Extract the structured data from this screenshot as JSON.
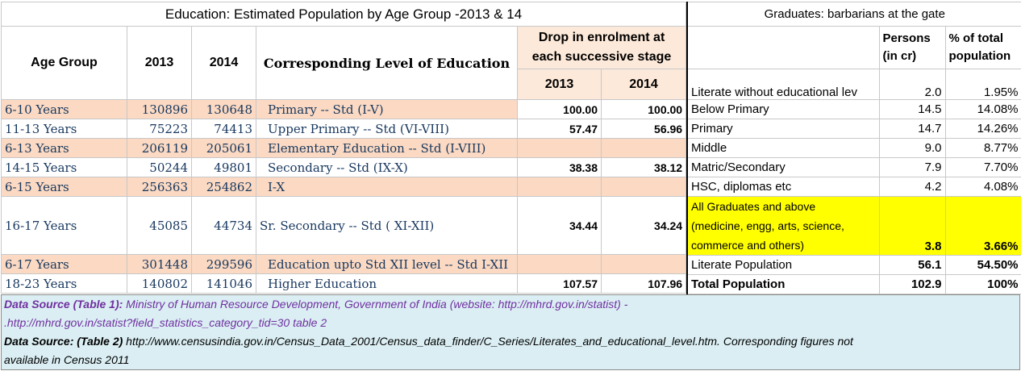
{
  "table1": {
    "title": "Education: Estimated Population by Age Group -2013 & 14",
    "headers": {
      "age_group": "Age Group",
      "y2013": "2013",
      "y2014": "2014",
      "level": "Corresponding Level of Education",
      "drop_line1": "Drop in enrolment at",
      "drop_line2": "each successive stage",
      "drop2013": "2013",
      "drop2014": "2014"
    },
    "rows": [
      {
        "age": "6-10 Years",
        "y2013": "130896",
        "y2014": "130648",
        "level": "Primary -- Std  (I-V)",
        "d2013": "100.00",
        "d2014": "100.00"
      },
      {
        "age": "11-13 Years",
        "y2013": "75223",
        "y2014": "74413",
        "level": "Upper Primary  -- Std  (VI-VIII)",
        "d2013": "57.47",
        "d2014": "56.96"
      },
      {
        "age": "6-13 Years",
        "y2013": "206119",
        "y2014": "205061",
        "level": "Elementary  Education -- Std  (I-VIII)",
        "d2013": "",
        "d2014": ""
      },
      {
        "age": "14-15 Years",
        "y2013": "50244",
        "y2014": "49801",
        "level": "Secondary  -- Std  (IX-X)",
        "d2013": "38.38",
        "d2014": "38.12"
      },
      {
        "age": "6-15 Years",
        "y2013": "256363",
        "y2014": "254862",
        "level": "I-X",
        "d2013": "",
        "d2014": ""
      },
      {
        "age": "16-17 Years",
        "y2013": "45085",
        "y2014": "44734",
        "level": "Sr.  Secondary  -- Std ( XI-XII)",
        "d2013": "34.44",
        "d2014": "34.24"
      },
      {
        "age": "6-17 Years",
        "y2013": "301448",
        "y2014": "299596",
        "level": "Education upto Std XII level -- Std  I-XII",
        "d2013": "",
        "d2014": ""
      },
      {
        "age": "18-23 Years",
        "y2013": "140802",
        "y2014": "141046",
        "level": "Higher Education",
        "d2013": "107.57",
        "d2014": "107.96"
      }
    ]
  },
  "table2": {
    "title": "Graduates: barbarians at the gate",
    "headers": {
      "persons_line1": "Persons",
      "persons_line2": "(in cr)",
      "pct_line1": "% of total",
      "pct_line2": "population"
    },
    "rows": [
      {
        "label": "Literate without educational lev",
        "persons": "2.0",
        "pct": "1.95%"
      },
      {
        "label": "Below Primary",
        "persons": "14.5",
        "pct": "14.08%"
      },
      {
        "label": "Primary",
        "persons": "14.7",
        "pct": "14.26%"
      },
      {
        "label": "Middle",
        "persons": "9.0",
        "pct": "8.77%"
      },
      {
        "label": "Matric/Secondary",
        "persons": "7.9",
        "pct": "7.70%"
      },
      {
        "label": "HSC, diplomas etc",
        "persons": "4.2",
        "pct": "4.08%"
      }
    ],
    "graduates": {
      "line1": "All Graduates and above",
      "line2": "(medicine, engg, arts, science,",
      "line3": "commerce and others)",
      "persons": "3.8",
      "pct": "3.66%"
    },
    "literate": {
      "label": "Literate Population",
      "persons": "56.1",
      "pct": "54.50%"
    },
    "total": {
      "label": "Total Population",
      "persons": "102.9",
      "pct": "100%"
    }
  },
  "sources": {
    "s1_label": "Data Source (Table 1):",
    "s1_text": "  Ministry of Human Resource Development, Government of India (website: http://mhrd.gov.in/statist)  -",
    "s1_line2": ".http://mhrd.gov.in/statist?field_statistics_category_tid=30   table 2",
    "s2_label": "Data Source: (Table 2)",
    "s2_text": "  http://www.censusindia.gov.in/Census_Data_2001/Census_data_finder/C_Series/Literates_and_educational_level.htm. Corresponding figures not",
    "s2_line2": "available in Census 2011"
  }
}
